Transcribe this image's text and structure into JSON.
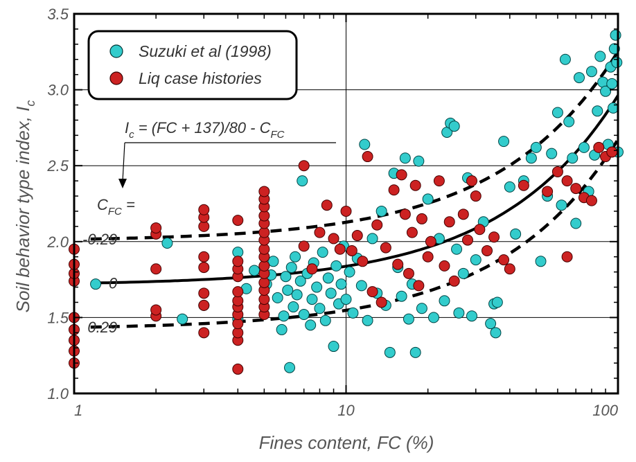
{
  "chart_data": {
    "type": "scatter",
    "xlabel": "Fines content, FC (%)",
    "ylabel_main": "Soil behavior type index, I",
    "ylabel_sub": "c",
    "x_scale": "log",
    "xlim": [
      1,
      100
    ],
    "ylim": [
      1.0,
      3.5
    ],
    "x_ticks": [
      "1",
      "10",
      "100"
    ],
    "y_ticks": [
      "1.0",
      "1.5",
      "2.0",
      "2.5",
      "3.0",
      "3.5"
    ],
    "grid": true,
    "legend_position": "top-left",
    "colors": {
      "suzuki": "#33cccc",
      "liq": "#cc2222",
      "curve": "#000000"
    },
    "equation": {
      "lhs_main": "I",
      "lhs_sub": "c",
      "rhs": " = (FC + 137)/80 - C",
      "rhs_sub": "FC"
    },
    "cfc_label": {
      "main": "C",
      "sub": "FC",
      "tail": " ="
    },
    "curves": [
      {
        "label": "-0.29",
        "cfc": -0.29,
        "style": "dashed"
      },
      {
        "label": "0",
        "cfc": 0,
        "style": "solid"
      },
      {
        "label": "0.29",
        "cfc": 0.29,
        "style": "dashed"
      }
    ],
    "series": [
      {
        "name": "Suzuki et al (1998)",
        "points": [
          [
            1.2,
            1.72
          ],
          [
            2.2,
            1.99
          ],
          [
            2.5,
            1.49
          ],
          [
            3,
            1.58
          ],
          [
            4,
            1.93
          ],
          [
            4,
            1.49
          ],
          [
            4.3,
            1.69
          ],
          [
            4.6,
            1.81
          ],
          [
            5.1,
            1.72
          ],
          [
            5.3,
            1.78
          ],
          [
            5.4,
            1.87
          ],
          [
            5.6,
            1.63
          ],
          [
            5.8,
            1.42
          ],
          [
            5.9,
            1.51
          ],
          [
            6,
            1.77
          ],
          [
            6.1,
            1.68
          ],
          [
            6.2,
            1.17
          ],
          [
            6.3,
            1.83
          ],
          [
            6.4,
            1.57
          ],
          [
            6.5,
            1.9
          ],
          [
            6.6,
            1.65
          ],
          [
            6.8,
            1.74
          ],
          [
            6.9,
            2.4
          ],
          [
            7,
            1.52
          ],
          [
            7.2,
            1.79
          ],
          [
            7.4,
            1.45
          ],
          [
            7.5,
            1.62
          ],
          [
            7.6,
            1.86
          ],
          [
            7.8,
            1.7
          ],
          [
            8,
            1.56
          ],
          [
            8.2,
            1.93
          ],
          [
            8.4,
            1.48
          ],
          [
            8.6,
            1.76
          ],
          [
            8.8,
            1.66
          ],
          [
            9,
            1.31
          ],
          [
            9.2,
            1.84
          ],
          [
            9.4,
            1.59
          ],
          [
            9.6,
            1.72
          ],
          [
            9.8,
            1.97
          ],
          [
            10,
            1.62
          ],
          [
            10.3,
            1.8
          ],
          [
            10.6,
            1.53
          ],
          [
            11,
            1.89
          ],
          [
            11.4,
            1.71
          ],
          [
            11.7,
            2.64
          ],
          [
            12,
            1.48
          ],
          [
            12.5,
            2.02
          ],
          [
            13,
            1.66
          ],
          [
            13.5,
            2.2
          ],
          [
            14,
            1.58
          ],
          [
            14.5,
            1.27
          ],
          [
            15,
            2.45
          ],
          [
            15.5,
            1.83
          ],
          [
            16,
            1.64
          ],
          [
            16.5,
            2.55
          ],
          [
            17,
            1.49
          ],
          [
            17.5,
            1.72
          ],
          [
            18,
            1.27
          ],
          [
            18.5,
            2.53
          ],
          [
            19,
            1.56
          ],
          [
            20,
            2.28
          ],
          [
            21,
            1.5
          ],
          [
            22,
            2.02
          ],
          [
            23,
            1.61
          ],
          [
            23.5,
            2.72
          ],
          [
            24.2,
            2.78
          ],
          [
            25,
            2.76
          ],
          [
            25.5,
            1.95
          ],
          [
            26,
            1.53
          ],
          [
            27,
            1.79
          ],
          [
            28,
            2.42
          ],
          [
            29,
            1.51
          ],
          [
            30,
            1.88
          ],
          [
            32,
            2.13
          ],
          [
            34,
            1.46
          ],
          [
            35,
            1.59
          ],
          [
            35.5,
            1.4
          ],
          [
            36,
            1.6
          ],
          [
            38,
            2.66
          ],
          [
            40,
            2.36
          ],
          [
            42,
            2.05
          ],
          [
            45,
            2.4
          ],
          [
            48,
            2.55
          ],
          [
            50,
            2.62
          ],
          [
            52,
            1.87
          ],
          [
            55,
            2.3
          ],
          [
            57,
            2.58
          ],
          [
            60,
            2.85
          ],
          [
            62,
            2.24
          ],
          [
            64,
            3.2
          ],
          [
            66,
            2.79
          ],
          [
            68,
            2.55
          ],
          [
            70,
            2.12
          ],
          [
            72,
            3.08
          ],
          [
            75,
            2.62
          ],
          [
            78,
            2.33
          ],
          [
            80,
            3.12
          ],
          [
            82,
            2.57
          ],
          [
            84,
            2.86
          ],
          [
            86,
            3.22
          ],
          [
            88,
            3.05
          ],
          [
            90,
            2.99
          ],
          [
            92,
            2.64
          ],
          [
            94,
            3.15
          ],
          [
            95,
            3.04
          ],
          [
            96,
            2.88
          ],
          [
            97,
            3.27
          ],
          [
            98,
            3.36
          ],
          [
            99,
            3.18
          ],
          [
            100,
            2.59
          ]
        ]
      },
      {
        "name": "Liq case histories",
        "points": [
          [
            1,
            1.2
          ],
          [
            1,
            1.28
          ],
          [
            1,
            1.35
          ],
          [
            1,
            1.42
          ],
          [
            1,
            1.5
          ],
          [
            1,
            1.74
          ],
          [
            1,
            1.79
          ],
          [
            1,
            1.85
          ],
          [
            1,
            1.95
          ],
          [
            2,
            1.51
          ],
          [
            2,
            1.55
          ],
          [
            2,
            1.82
          ],
          [
            2,
            2.05
          ],
          [
            2,
            2.09
          ],
          [
            3,
            1.4
          ],
          [
            3,
            1.58
          ],
          [
            3,
            1.66
          ],
          [
            3,
            1.83
          ],
          [
            3,
            1.9
          ],
          [
            3,
            2.1
          ],
          [
            3,
            2.16
          ],
          [
            3,
            2.21
          ],
          [
            4,
            1.16
          ],
          [
            4,
            1.35
          ],
          [
            4,
            1.4
          ],
          [
            4,
            1.46
          ],
          [
            4,
            1.52
          ],
          [
            4,
            1.57
          ],
          [
            4,
            1.61
          ],
          [
            4,
            1.67
          ],
          [
            4,
            1.77
          ],
          [
            4,
            1.82
          ],
          [
            4,
            1.87
          ],
          [
            4,
            2.14
          ],
          [
            5,
            1.52
          ],
          [
            5,
            1.57
          ],
          [
            5,
            1.62
          ],
          [
            5,
            1.68
          ],
          [
            5,
            1.73
          ],
          [
            5,
            1.79
          ],
          [
            5,
            1.84
          ],
          [
            5,
            1.9
          ],
          [
            5,
            1.95
          ],
          [
            5,
            2.01
          ],
          [
            5,
            2.06
          ],
          [
            5,
            2.12
          ],
          [
            5,
            2.17
          ],
          [
            5,
            2.23
          ],
          [
            5,
            2.28
          ],
          [
            5,
            2.33
          ],
          [
            7,
            2.5
          ],
          [
            7,
            1.97
          ],
          [
            7.5,
            1.82
          ],
          [
            8,
            2.06
          ],
          [
            8.5,
            2.24
          ],
          [
            9,
            2.02
          ],
          [
            9.5,
            1.95
          ],
          [
            10,
            2.2
          ],
          [
            10.5,
            1.94
          ],
          [
            11,
            2.04
          ],
          [
            11.5,
            1.87
          ],
          [
            12,
            2.56
          ],
          [
            12.5,
            1.67
          ],
          [
            13,
            2.11
          ],
          [
            13.5,
            1.6
          ],
          [
            14,
            1.96
          ],
          [
            15,
            2.34
          ],
          [
            15.5,
            1.85
          ],
          [
            16,
            2.44
          ],
          [
            16.5,
            2.18
          ],
          [
            17,
            1.79
          ],
          [
            17.5,
            2.06
          ],
          [
            18,
            2.37
          ],
          [
            18.5,
            1.71
          ],
          [
            19,
            2.15
          ],
          [
            20,
            1.9
          ],
          [
            20.5,
            2.0
          ],
          [
            22,
            2.4
          ],
          [
            23,
            1.84
          ],
          [
            24,
            2.13
          ],
          [
            25,
            1.74
          ],
          [
            27,
            2.18
          ],
          [
            28,
            2.01
          ],
          [
            29,
            2.4
          ],
          [
            30,
            2.3
          ],
          [
            31,
            2.08
          ],
          [
            33,
            1.94
          ],
          [
            35,
            2.03
          ],
          [
            38,
            1.88
          ],
          [
            40,
            1.82
          ],
          [
            45,
            2.37
          ],
          [
            55,
            2.33
          ],
          [
            60,
            2.46
          ],
          [
            65,
            2.4
          ],
          [
            65,
            1.9
          ],
          [
            70,
            2.35
          ],
          [
            75,
            2.29
          ],
          [
            80,
            2.27
          ],
          [
            85,
            2.62
          ],
          [
            90,
            2.56
          ],
          [
            95,
            2.59
          ]
        ]
      }
    ]
  }
}
